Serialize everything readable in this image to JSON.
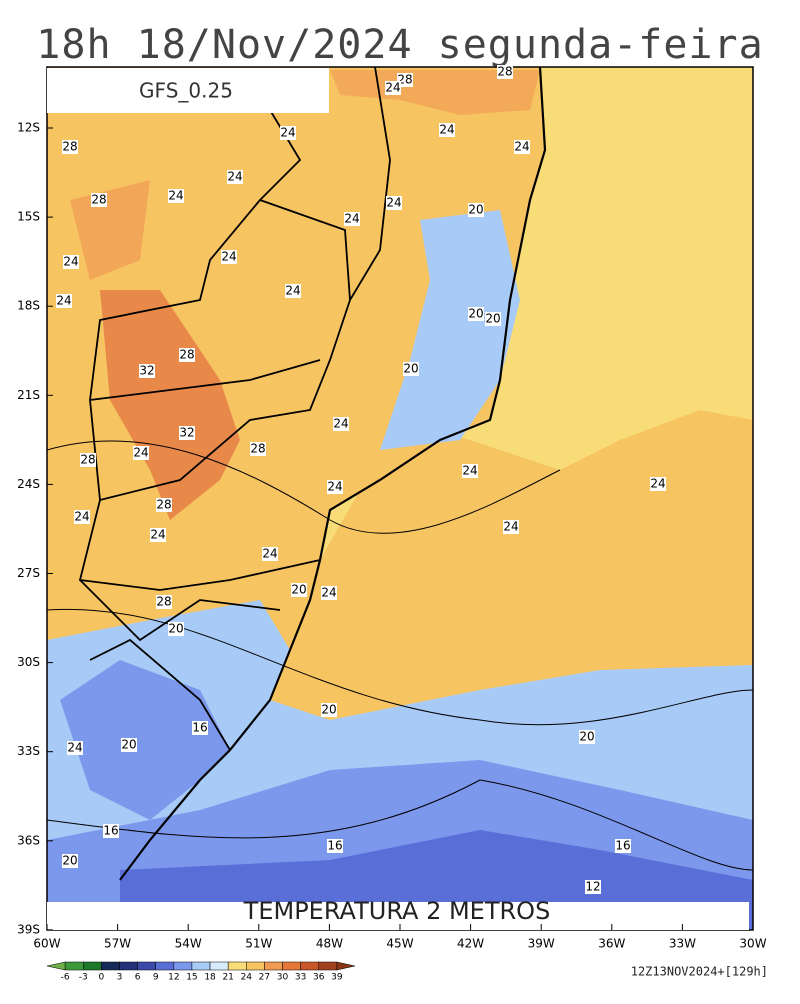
{
  "title": "18h 18/Nov/2024 segunda-feira",
  "model": "GFS_0.25",
  "caption": "TEMPERATURA 2 METROS",
  "run": "12Z13NOV2024+[129h]",
  "lat_labels": [
    "12S",
    "15S",
    "18S",
    "21S",
    "24S",
    "27S",
    "30S",
    "33S",
    "36S",
    "39S"
  ],
  "lon_labels": [
    "60W",
    "57W",
    "54W",
    "51W",
    "48W",
    "45W",
    "42W",
    "39W",
    "36W",
    "33W",
    "30W"
  ],
  "contour_labels": [
    "28",
    "24",
    "28",
    "24",
    "24",
    "28",
    "24",
    "24",
    "24",
    "28",
    "24",
    "20",
    "24",
    "24",
    "24",
    "24",
    "24",
    "20",
    "20",
    "28",
    "32",
    "20",
    "24",
    "32",
    "28",
    "24",
    "28",
    "24",
    "24",
    "24",
    "28",
    "24",
    "24",
    "24",
    "24",
    "20",
    "24",
    "28",
    "20",
    "20",
    "16",
    "20",
    "24",
    "20",
    "16",
    "16",
    "16",
    "20",
    "12"
  ],
  "colorbar": {
    "labels": [
      "-6",
      "-3",
      "0",
      "3",
      "6",
      "9",
      "12",
      "15",
      "18",
      "21",
      "24",
      "27",
      "30",
      "33",
      "36",
      "39"
    ],
    "colors": [
      "#6fb04a",
      "#3d9a3a",
      "#1d7a2a",
      "#162a5a",
      "#23327a",
      "#3b4aa8",
      "#5a6ed8",
      "#7c98ec",
      "#a8caf6",
      "#d6ecfa",
      "#f8dc78",
      "#f7c462",
      "#f09a52",
      "#e6783a",
      "#c8582a",
      "#a0421c",
      "#8a3414"
    ]
  }
}
